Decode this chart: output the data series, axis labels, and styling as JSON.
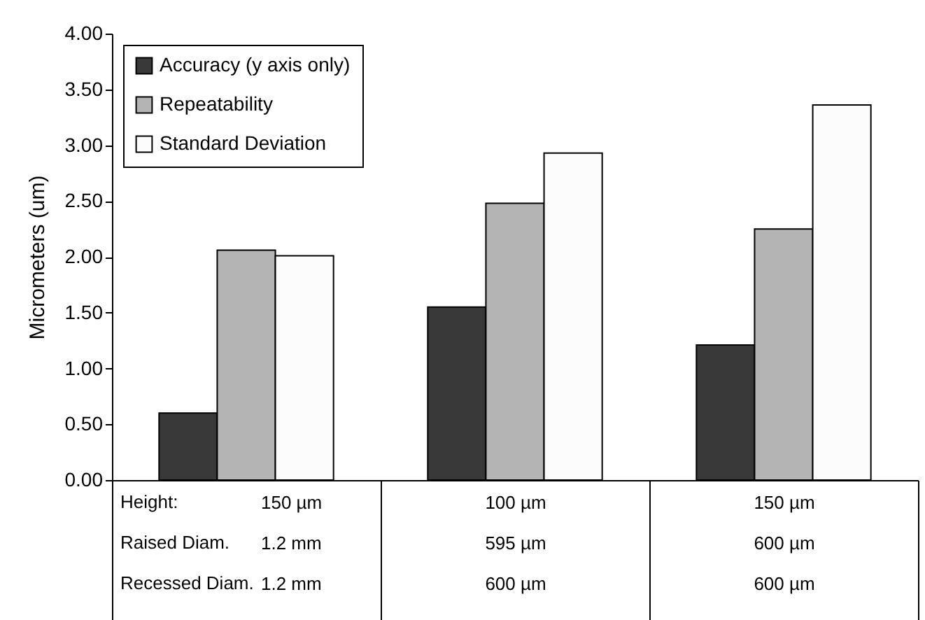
{
  "chart_data": {
    "type": "bar",
    "ylabel": "Micrometers (um)",
    "categories": [
      "150 µm\n1.2 mm\n1.2 mm",
      "100 µm\n595 µm\n600 µm",
      "150 µm\n600 µm\n600 µm"
    ],
    "series": [
      {
        "name": "Accuracy (y axis only)",
        "color": "#393939",
        "values": [
          0.6,
          1.55,
          1.21
        ]
      },
      {
        "name": "Repeatability",
        "color": "#b4b4b4",
        "values": [
          2.06,
          2.48,
          2.25
        ]
      },
      {
        "name": "Standard Deviation",
        "color": "#fcfcfc",
        "values": [
          2.01,
          2.93,
          3.36
        ]
      }
    ],
    "annotations": [
      "Height:",
      "Raised Diam.",
      "Recessed Diam."
    ],
    "ylim": [
      0,
      4
    ],
    "yticks": [
      {
        "value": 0,
        "label": "0.00"
      },
      {
        "value": 0.5,
        "label": "0.50"
      },
      {
        "value": 1,
        "label": "1.00"
      },
      {
        "value": 1.5,
        "label": "1.50"
      },
      {
        "value": 2,
        "label": "2.00"
      },
      {
        "value": 2.5,
        "label": "2.50"
      },
      {
        "value": 3,
        "label": "3.00"
      },
      {
        "value": 3.5,
        "label": "3.50"
      },
      {
        "value": 4,
        "label": "4.00"
      }
    ],
    "grid": false,
    "legend": "top left"
  }
}
